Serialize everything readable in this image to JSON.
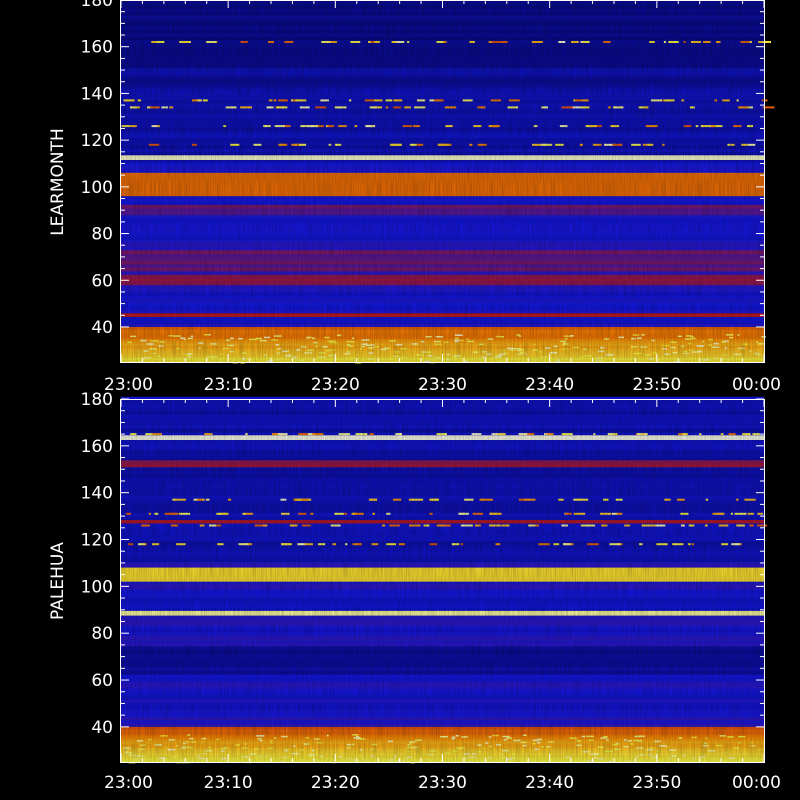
{
  "chart_data": [
    {
      "type": "heatmap",
      "station": "LEARMONTH",
      "ylabel": "LEARMONTH",
      "x_ticks": [
        "23:00",
        "23:10",
        "23:20",
        "23:30",
        "23:40",
        "23:50",
        "00:00"
      ],
      "y_ticks": [
        40,
        60,
        80,
        100,
        120,
        140,
        160,
        180
      ],
      "ylim": [
        25,
        180
      ],
      "xlim": [
        "23:00",
        "00:00"
      ],
      "colormap": [
        "#00004a",
        "#1418e8",
        "#c81818",
        "#ff8c00",
        "#ffff40",
        "#ffffff"
      ],
      "strong_bands": [
        {
          "low": 111.5,
          "high": 113.5,
          "level": 0.95
        },
        {
          "low": 96,
          "high": 106,
          "level": 0.55
        }
      ],
      "weak_bands": [
        {
          "low": 88,
          "high": 92,
          "level": 0.3
        },
        {
          "low": 64,
          "high": 72,
          "level": 0.3
        },
        {
          "low": 58,
          "high": 62,
          "level": 0.35
        },
        {
          "low": 44,
          "high": 46,
          "level": 0.4
        }
      ],
      "dark_bands": [
        {
          "low": 150,
          "high": 180,
          "level": 0.1
        },
        {
          "low": 142,
          "high": 146,
          "level": 0.12
        }
      ],
      "low_band": {
        "low": 25,
        "high": 40,
        "level": 0.7
      },
      "burst_rows": [
        162,
        137,
        134,
        126,
        118
      ]
    },
    {
      "type": "heatmap",
      "station": "PALEHUA",
      "ylabel": "PALEHUA",
      "x_ticks": [
        "23:00",
        "23:10",
        "23:20",
        "23:30",
        "23:40",
        "23:50",
        "00:00"
      ],
      "y_ticks": [
        40,
        60,
        80,
        100,
        120,
        140,
        160,
        180
      ],
      "ylim": [
        25,
        180
      ],
      "xlim": [
        "23:00",
        "00:00"
      ],
      "colormap": [
        "#00004a",
        "#1418e8",
        "#c81818",
        "#ff8c00",
        "#ffff40",
        "#ffffff"
      ],
      "strong_bands": [
        {
          "low": 162.5,
          "high": 164.5,
          "level": 0.98
        },
        {
          "low": 102,
          "high": 108,
          "level": 0.75
        },
        {
          "low": 87.5,
          "high": 89.5,
          "level": 0.9
        }
      ],
      "weak_bands": [
        {
          "low": 151,
          "high": 153,
          "level": 0.35
        },
        {
          "low": 127,
          "high": 128,
          "level": 0.35
        }
      ],
      "dark_bands": [
        {
          "low": 62,
          "high": 74,
          "level": 0.12
        },
        {
          "low": 110,
          "high": 112,
          "level": 0.15
        }
      ],
      "low_band": {
        "low": 25,
        "high": 40,
        "level": 0.7
      },
      "burst_rows": [
        165,
        137,
        131,
        126,
        118
      ]
    }
  ]
}
